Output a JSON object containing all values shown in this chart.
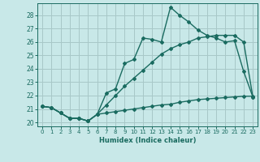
{
  "title": "",
  "xlabel": "Humidex (Indice chaleur)",
  "bg_color": "#c8e8e8",
  "grid_color": "#a8c8c8",
  "line_color": "#1a6b60",
  "xlim": [
    -0.5,
    23.5
  ],
  "ylim": [
    19.7,
    28.9
  ],
  "yticks": [
    20,
    21,
    22,
    23,
    24,
    25,
    26,
    27,
    28
  ],
  "xticks": [
    0,
    1,
    2,
    3,
    4,
    5,
    6,
    7,
    8,
    9,
    10,
    11,
    12,
    13,
    14,
    15,
    16,
    17,
    18,
    19,
    20,
    21,
    22,
    23
  ],
  "line1_x": [
    0,
    1,
    2,
    3,
    4,
    5,
    6,
    7,
    8,
    9,
    10,
    11,
    12,
    13,
    14,
    15,
    16,
    17,
    18,
    19,
    20,
    21,
    22,
    23
  ],
  "line1_y": [
    21.2,
    21.1,
    20.7,
    20.3,
    20.3,
    20.1,
    20.6,
    22.2,
    22.5,
    24.4,
    24.7,
    26.3,
    26.2,
    26.0,
    28.6,
    28.0,
    27.5,
    26.9,
    26.5,
    26.3,
    26.0,
    26.1,
    23.8,
    21.9
  ],
  "line2_x": [
    0,
    1,
    2,
    3,
    4,
    5,
    6,
    7,
    8,
    9,
    10,
    11,
    12,
    13,
    14,
    15,
    16,
    17,
    18,
    19,
    20,
    21,
    22,
    23
  ],
  "line2_y": [
    21.2,
    21.1,
    20.7,
    20.3,
    20.3,
    20.1,
    20.6,
    21.3,
    22.0,
    22.7,
    23.3,
    23.9,
    24.5,
    25.1,
    25.5,
    25.8,
    26.0,
    26.3,
    26.4,
    26.5,
    26.5,
    26.5,
    26.0,
    21.9
  ],
  "line3_x": [
    0,
    1,
    2,
    3,
    4,
    5,
    6,
    7,
    8,
    9,
    10,
    11,
    12,
    13,
    14,
    15,
    16,
    17,
    18,
    19,
    20,
    21,
    22,
    23
  ],
  "line3_y": [
    21.2,
    21.1,
    20.7,
    20.3,
    20.3,
    20.1,
    20.6,
    20.7,
    20.8,
    20.9,
    21.0,
    21.1,
    21.2,
    21.3,
    21.35,
    21.5,
    21.6,
    21.7,
    21.75,
    21.8,
    21.85,
    21.9,
    21.95,
    21.95
  ],
  "marker": "D",
  "markersize": 2.0,
  "linewidth": 1.0
}
